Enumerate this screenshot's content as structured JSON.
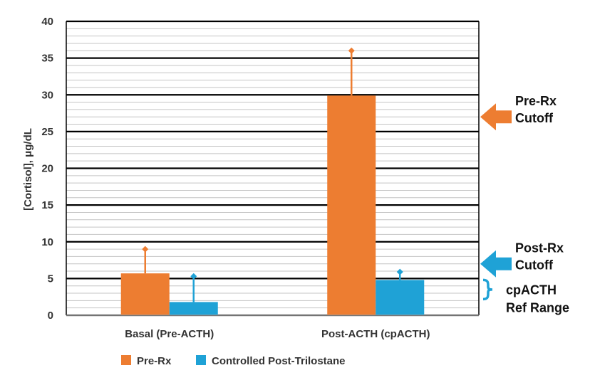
{
  "chart_data": {
    "type": "bar",
    "categories": [
      "Basal (Pre-ACTH)",
      "Post-ACTH (cpACTH)"
    ],
    "series": [
      {
        "name": "Pre-Rx",
        "color": "#ED7D31",
        "values": [
          5.7,
          29.9
        ],
        "error_upper": [
          9.0,
          36.0
        ]
      },
      {
        "name": "Controlled Post-Trilostane",
        "color": "#1FA2D6",
        "values": [
          1.8,
          4.8
        ],
        "error_upper": [
          5.3,
          5.9
        ]
      }
    ],
    "ylabel": "[Cortisol], μg/dL",
    "ylim": [
      0,
      40
    ],
    "yticks": [
      0,
      5,
      10,
      15,
      20,
      25,
      30,
      35,
      40
    ],
    "grid": {
      "major_step": 5,
      "minor_step": 1
    },
    "legend": "bottom",
    "annotations": [
      {
        "label_lines": [
          "Pre-Rx",
          "Cutoff"
        ],
        "marker": "arrow",
        "color": "#ED7D31",
        "value": 27
      },
      {
        "label_lines": [
          "Post-Rx",
          "Cutoff"
        ],
        "marker": "arrow",
        "color": "#1FA2D6",
        "value": 7
      },
      {
        "label_lines": [
          "cpACTH",
          "Ref Range"
        ],
        "marker": "brace",
        "color": "#1FA2D6",
        "range": [
          2,
          5
        ]
      }
    ]
  }
}
